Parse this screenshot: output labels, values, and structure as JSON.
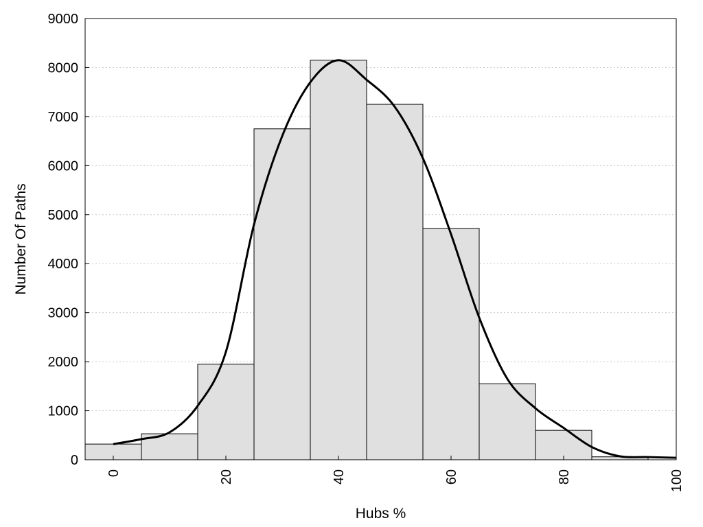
{
  "chart_data": {
    "type": "bar",
    "xlabel": "Hubs %",
    "ylabel": "Number Of Paths",
    "xlim": [
      -5,
      100
    ],
    "ylim": [
      0,
      9000
    ],
    "x_ticks": [
      0,
      20,
      40,
      60,
      80,
      100
    ],
    "y_ticks": [
      0,
      1000,
      2000,
      3000,
      4000,
      5000,
      6000,
      7000,
      8000,
      9000
    ],
    "grid": "horizontal dotted",
    "bar_color": "#e0e0e0",
    "bar_edge_color": "#000000",
    "bin_width": 10,
    "bars": [
      {
        "x": 0,
        "value": 320
      },
      {
        "x": 10,
        "value": 530
      },
      {
        "x": 20,
        "value": 1950
      },
      {
        "x": 30,
        "value": 6750
      },
      {
        "x": 40,
        "value": 8150
      },
      {
        "x": 50,
        "value": 7250
      },
      {
        "x": 60,
        "value": 4720
      },
      {
        "x": 70,
        "value": 1550
      },
      {
        "x": 80,
        "value": 600
      },
      {
        "x": 90,
        "value": 60
      }
    ],
    "series": [
      {
        "type": "line",
        "color": "#000000",
        "x": [
          0,
          5,
          10,
          15,
          20,
          25,
          30,
          35,
          40,
          45,
          50,
          55,
          60,
          65,
          70,
          75,
          80,
          85,
          90,
          95,
          100
        ],
        "y": [
          320,
          420,
          560,
          1100,
          2200,
          4800,
          6600,
          7700,
          8150,
          7750,
          7200,
          6150,
          4600,
          2900,
          1650,
          1050,
          650,
          260,
          70,
          55,
          40
        ]
      }
    ]
  }
}
